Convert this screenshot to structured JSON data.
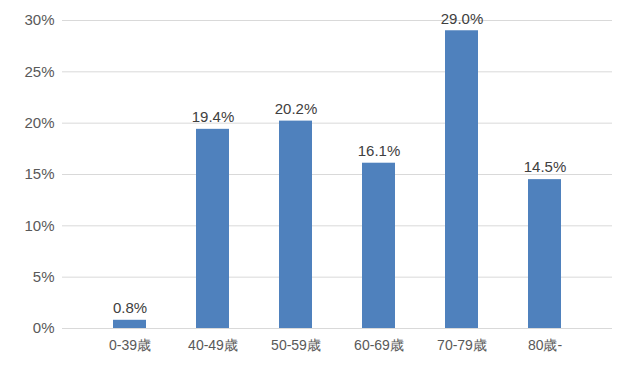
{
  "chart_data": {
    "type": "bar",
    "categories": [
      "0-39歳",
      "40-49歳",
      "50-59歳",
      "60-69歳",
      "70-79歳",
      "80歳-"
    ],
    "values": [
      0.8,
      19.4,
      20.2,
      16.1,
      29.0,
      14.5
    ],
    "value_labels": [
      "0.8%",
      "19.4%",
      "20.2%",
      "16.1%",
      "29.0%",
      "14.5%"
    ],
    "data_labels": true,
    "color": "#4f81bd",
    "ylim": [
      0,
      30
    ],
    "yticks": [
      {
        "value": 0,
        "label": "0%"
      },
      {
        "value": 5,
        "label": "5%"
      },
      {
        "value": 10,
        "label": "10%"
      },
      {
        "value": 15,
        "label": "15%"
      },
      {
        "value": 20,
        "label": "20%"
      },
      {
        "value": 25,
        "label": "25%"
      },
      {
        "value": 30,
        "label": "30%"
      }
    ],
    "grid": true
  }
}
